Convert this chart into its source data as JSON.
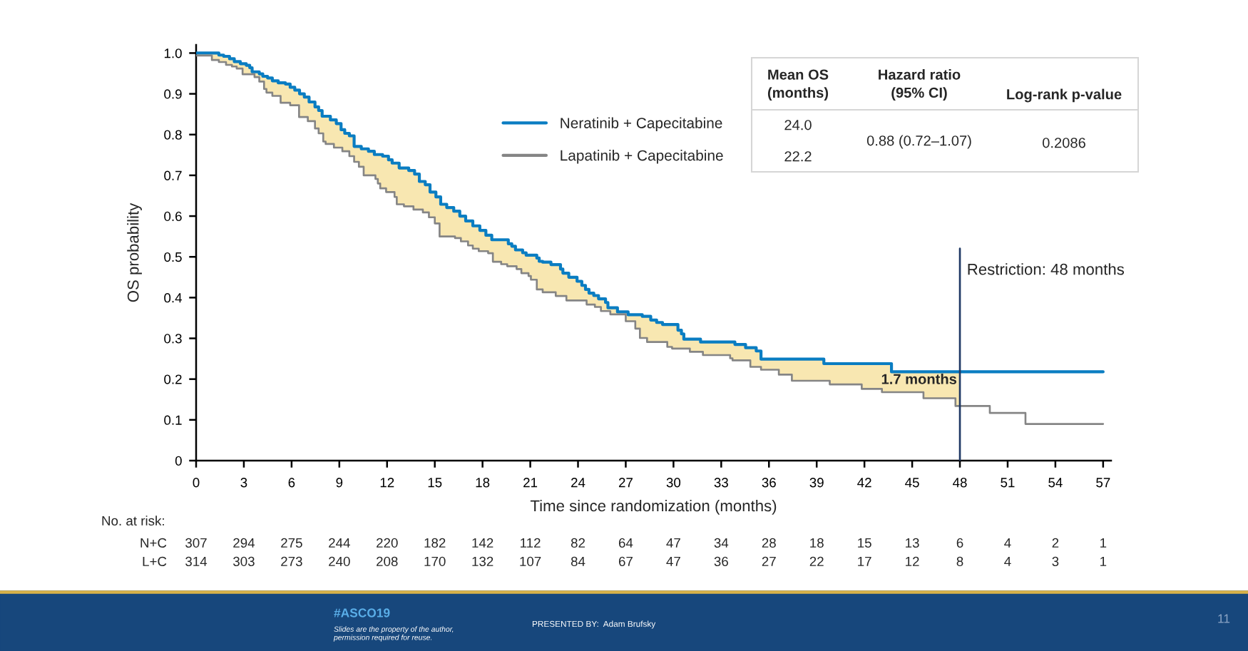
{
  "chart_data": {
    "type": "step",
    "xlabel": "Time since randomization (months)",
    "ylabel": "OS probability",
    "xlim": [
      0,
      57.5
    ],
    "ylim": [
      0,
      1.02
    ],
    "xticks": [
      0,
      3,
      6,
      9,
      12,
      15,
      18,
      21,
      24,
      27,
      30,
      33,
      36,
      39,
      42,
      45,
      48,
      51,
      54,
      57
    ],
    "yticks": [
      0,
      0.1,
      0.2,
      0.3,
      0.4,
      0.5,
      0.6,
      0.7,
      0.8,
      0.9,
      {
        "value": 1,
        "label": "1.0"
      }
    ],
    "legend": "top",
    "series": [
      {
        "name": "Neratinib + Capecitabine",
        "color": "#0a7dc2",
        "x": [
          0,
          0.99,
          1.43,
          1.73,
          1.88,
          2.1,
          2.25,
          2.4,
          2.55,
          2.78,
          2.92,
          3.15,
          3.37,
          3.52,
          3.67,
          3.97,
          4.19,
          4.27,
          4.42,
          4.49,
          4.79,
          5.16,
          5.31,
          5.61,
          5.91,
          6.2,
          6.47,
          6.5,
          6.8,
          7.02,
          7.1,
          7.47,
          7.7,
          7.92,
          7.99,
          8.14,
          8.44,
          8.66,
          8.81,
          9.11,
          9.19,
          9.34,
          9.63,
          9.93,
          10.23,
          10.38,
          10.53,
          10.83,
          11.2,
          11.27,
          11.42,
          11.57,
          11.72,
          11.94,
          12.09,
          12.32,
          12.47,
          12.61,
          12.76,
          13.06,
          13.36,
          13.66,
          13.73,
          14.03,
          14.25,
          14.4,
          14.63,
          14.7,
          15.0,
          15.07,
          15.3,
          15.37,
          15.75,
          16.19,
          16.27,
          16.57,
          16.64,
          16.94,
          17.09,
          17.39,
          17.76,
          17.83,
          18.21,
          18.35,
          18.58,
          18.65,
          19.17,
          19.55,
          19.62,
          19.84,
          20.07,
          20.14,
          20.44,
          20.52,
          20.74,
          20.89,
          21.04,
          21.41,
          21.56,
          21.78,
          22.3,
          22.6,
          22.9,
          23.05,
          23.27,
          23.42,
          23.94,
          24.24,
          24.47,
          24.54,
          24.69,
          24.99,
          25.06,
          25.29,
          25.44,
          25.73,
          25.88,
          26.03,
          26.48,
          27.0,
          27.15,
          27.6,
          27.89,
          28.04,
          28.34,
          28.57,
          28.94,
          29.31,
          29.61,
          29.91,
          30.28,
          30.5,
          30.65,
          31.03,
          31.7,
          31.85,
          33.56,
          33.71,
          33.86,
          34.53,
          34.83,
          35.2,
          35.5,
          36.62,
          37.44,
          39.45,
          39.82,
          41.83,
          43.1,
          43.7,
          45.71,
          47.72,
          48,
          57
        ],
        "values": [
          1.0,
          1.0,
          0.995,
          0.992,
          0.992,
          0.986,
          0.986,
          0.979,
          0.979,
          0.974,
          0.974,
          0.97,
          0.964,
          0.954,
          0.954,
          0.949,
          0.943,
          0.943,
          0.943,
          0.939,
          0.932,
          0.927,
          0.927,
          0.924,
          0.916,
          0.909,
          0.909,
          0.9,
          0.892,
          0.892,
          0.88,
          0.868,
          0.859,
          0.845,
          0.845,
          0.845,
          0.836,
          0.836,
          0.827,
          0.812,
          0.812,
          0.803,
          0.797,
          0.771,
          0.771,
          0.765,
          0.765,
          0.759,
          0.751,
          0.751,
          0.751,
          0.751,
          0.747,
          0.747,
          0.738,
          0.73,
          0.73,
          0.73,
          0.718,
          0.718,
          0.712,
          0.712,
          0.703,
          0.685,
          0.685,
          0.677,
          0.677,
          0.659,
          0.659,
          0.647,
          0.647,
          0.629,
          0.621,
          0.612,
          0.612,
          0.6,
          0.6,
          0.588,
          0.588,
          0.576,
          0.576,
          0.565,
          0.553,
          0.553,
          0.542,
          0.542,
          0.542,
          0.542,
          0.532,
          0.526,
          0.517,
          0.517,
          0.517,
          0.51,
          0.504,
          0.504,
          0.504,
          0.497,
          0.489,
          0.487,
          0.481,
          0.481,
          0.47,
          0.46,
          0.46,
          0.45,
          0.44,
          0.43,
          0.42,
          0.42,
          0.411,
          0.405,
          0.405,
          0.397,
          0.397,
          0.388,
          0.375,
          0.375,
          0.365,
          0.365,
          0.358,
          0.358,
          0.358,
          0.354,
          0.354,
          0.345,
          0.339,
          0.334,
          0.334,
          0.334,
          0.32,
          0.311,
          0.298,
          0.298,
          0.291,
          0.291,
          0.291,
          0.291,
          0.285,
          0.277,
          0.277,
          0.269,
          0.249,
          0.249,
          0.249,
          0.238,
          0.238,
          0.238,
          0.238,
          0.218,
          0.218,
          0.218,
          0.218,
          0.218
        ],
        "upper": [
          1.0,
          1.0,
          0.995,
          0.992,
          0.992,
          0.986,
          0.986,
          0.979,
          0.979,
          0.974,
          0.974,
          0.97,
          0.964,
          0.954,
          0.954,
          0.949,
          0.943,
          0.943,
          0.943,
          0.939,
          0.932,
          0.927,
          0.927,
          0.924,
          0.916,
          0.909,
          0.909,
          0.9,
          0.892,
          0.892,
          0.88,
          0.868,
          0.859,
          0.845,
          0.845,
          0.845,
          0.836,
          0.836,
          0.827,
          0.812,
          0.812,
          0.803,
          0.797,
          0.771,
          0.771,
          0.765,
          0.765,
          0.759,
          0.751,
          0.751,
          0.751,
          0.751,
          0.747,
          0.747,
          0.738,
          0.73,
          0.73,
          0.73,
          0.718,
          0.718,
          0.712,
          0.712,
          0.703,
          0.685,
          0.685,
          0.677,
          0.677,
          0.659,
          0.659,
          0.647,
          0.647,
          0.629,
          0.621,
          0.612,
          0.612,
          0.6,
          0.6,
          0.588,
          0.588,
          0.576,
          0.576,
          0.565,
          0.553,
          0.553,
          0.542,
          0.542,
          0.542,
          0.542,
          0.532,
          0.526,
          0.517,
          0.517,
          0.517,
          0.51,
          0.504,
          0.504,
          0.504,
          0.497,
          0.489,
          0.487,
          0.481,
          0.481,
          0.47,
          0.46,
          0.46,
          0.45,
          0.44,
          0.43,
          0.42,
          0.42,
          0.411,
          0.405,
          0.405,
          0.397,
          0.397,
          0.388,
          0.375,
          0.375,
          0.365,
          0.365,
          0.358,
          0.358,
          0.358,
          0.354,
          0.354,
          0.345,
          0.339,
          0.334,
          0.334,
          0.334,
          0.32,
          0.311,
          0.298,
          0.298,
          0.291,
          0.291,
          0.291,
          0.291,
          0.285,
          0.277,
          0.277,
          0.269,
          0.249,
          0.249,
          0.249,
          0.238,
          0.238,
          0.238,
          0.238,
          0.218,
          0.218,
          0.218,
          0.218,
          null
        ],
        "lower": [
          0.994,
          0.983,
          0.978,
          0.978,
          0.971,
          0.971,
          0.967,
          0.967,
          0.962,
          0.962,
          0.948,
          0.948,
          0.948,
          0.948,
          0.941,
          0.93,
          0.93,
          0.912,
          0.903,
          0.903,
          0.895,
          0.895,
          0.878,
          0.878,
          0.872,
          0.872,
          0.843,
          0.843,
          0.843,
          0.833,
          0.833,
          0.815,
          0.803,
          0.803,
          0.783,
          0.777,
          0.777,
          0.768,
          0.768,
          0.768,
          0.759,
          0.759,
          0.747,
          0.733,
          0.721,
          0.721,
          0.7,
          0.7,
          0.7,
          0.691,
          0.68,
          0.668,
          0.668,
          0.659,
          0.659,
          0.659,
          0.647,
          0.629,
          0.629,
          0.624,
          0.624,
          0.616,
          0.616,
          0.616,
          0.609,
          0.609,
          0.597,
          0.597,
          0.582,
          0.582,
          0.55,
          0.55,
          0.55,
          0.55,
          0.546,
          0.546,
          0.538,
          0.538,
          0.528,
          0.52,
          0.514,
          0.514,
          0.514,
          0.509,
          0.509,
          0.488,
          0.482,
          0.477,
          0.477,
          0.477,
          0.477,
          0.47,
          0.46,
          0.46,
          0.46,
          0.453,
          0.444,
          0.42,
          0.42,
          0.413,
          0.413,
          0.404,
          0.404,
          0.404,
          0.393,
          0.393,
          0.393,
          0.393,
          0.393,
          0.383,
          0.383,
          0.383,
          0.377,
          0.377,
          0.367,
          0.367,
          0.367,
          0.359,
          0.359,
          0.342,
          0.342,
          0.324,
          0.301,
          0.301,
          0.291,
          0.291,
          0.291,
          0.291,
          0.279,
          0.275,
          0.275,
          0.275,
          0.275,
          0.267,
          0.267,
          0.259,
          0.251,
          0.246,
          0.246,
          0.246,
          0.23,
          0.23,
          0.223,
          0.211,
          0.196,
          0.196,
          0.187,
          0.176,
          0.168,
          0.168,
          0.153,
          0.134,
          0.134,
          null
        ]
      },
      {
        "name": "Lapatinib + Capecitabine",
        "color": "#858585",
        "x": [
          0,
          0.99,
          1.43,
          1.88,
          2.25,
          2.55,
          2.92,
          3.67,
          3.97,
          4.27,
          4.42,
          4.79,
          5.31,
          5.91,
          6.47,
          7.02,
          7.47,
          7.7,
          7.99,
          8.14,
          8.66,
          9.19,
          9.63,
          9.93,
          10.23,
          10.53,
          11.27,
          11.42,
          11.57,
          11.94,
          12.47,
          12.61,
          13.06,
          13.66,
          14.25,
          14.63,
          15.0,
          15.3,
          16.27,
          16.64,
          17.09,
          17.39,
          17.76,
          18.35,
          18.65,
          19.17,
          19.55,
          20.14,
          20.44,
          20.89,
          21.04,
          21.41,
          21.78,
          22.6,
          23.27,
          24.54,
          25.06,
          25.44,
          26.03,
          27.0,
          27.6,
          27.89,
          28.34,
          29.61,
          29.91,
          31.03,
          31.85,
          33.56,
          33.71,
          34.83,
          35.5,
          36.62,
          37.44,
          39.82,
          41.83,
          43.1,
          45.71,
          47.72,
          49.88,
          52.12,
          57
        ],
        "values": [
          0.994,
          0.983,
          0.978,
          0.971,
          0.967,
          0.962,
          0.948,
          0.941,
          0.93,
          0.912,
          0.903,
          0.895,
          0.878,
          0.872,
          0.843,
          0.833,
          0.815,
          0.803,
          0.783,
          0.777,
          0.768,
          0.759,
          0.747,
          0.733,
          0.721,
          0.7,
          0.691,
          0.68,
          0.668,
          0.659,
          0.647,
          0.629,
          0.624,
          0.616,
          0.609,
          0.597,
          0.582,
          0.55,
          0.546,
          0.538,
          0.528,
          0.52,
          0.514,
          0.509,
          0.488,
          0.482,
          0.477,
          0.47,
          0.46,
          0.453,
          0.444,
          0.42,
          0.413,
          0.404,
          0.393,
          0.383,
          0.377,
          0.367,
          0.359,
          0.342,
          0.324,
          0.301,
          0.291,
          0.279,
          0.275,
          0.267,
          0.259,
          0.251,
          0.246,
          0.23,
          0.223,
          0.211,
          0.196,
          0.187,
          0.176,
          0.168,
          0.153,
          0.134,
          0.117,
          0.09,
          0.09
        ]
      }
    ],
    "ref_lines": [
      {
        "axis": "x",
        "value": 48,
        "label": "Restriction: 48 months",
        "color": "#1f3864"
      }
    ],
    "annotations": [
      {
        "text": "1.7 months",
        "x": 48,
        "y": 0.197
      },
      "Mean OS\n(months)",
      "Hazard ratio\n(95% CI)",
      "Log-rank p-value",
      "24.0",
      "22.2",
      "0.88 (0.72–1.07)",
      "0.2086",
      "No. at risk:",
      "N+C",
      "307",
      "294",
      "275",
      "244",
      "220",
      "182",
      "142",
      "112",
      "82",
      "64",
      "47",
      "34",
      "28",
      "18",
      "15",
      "13",
      "6",
      "4",
      "2",
      "1",
      "L+C",
      "314",
      "303",
      "273",
      "240",
      "208",
      "170",
      "132",
      "107",
      "84",
      "67",
      "47",
      "36",
      "27",
      "22",
      "17",
      "12",
      "8",
      "4",
      "3",
      "1",
      "#ASCO19",
      "Slides are the property of the author,\npermission required for reuse.",
      "PRESENTED BY:  Adam Brufsky",
      "11"
    ]
  }
}
